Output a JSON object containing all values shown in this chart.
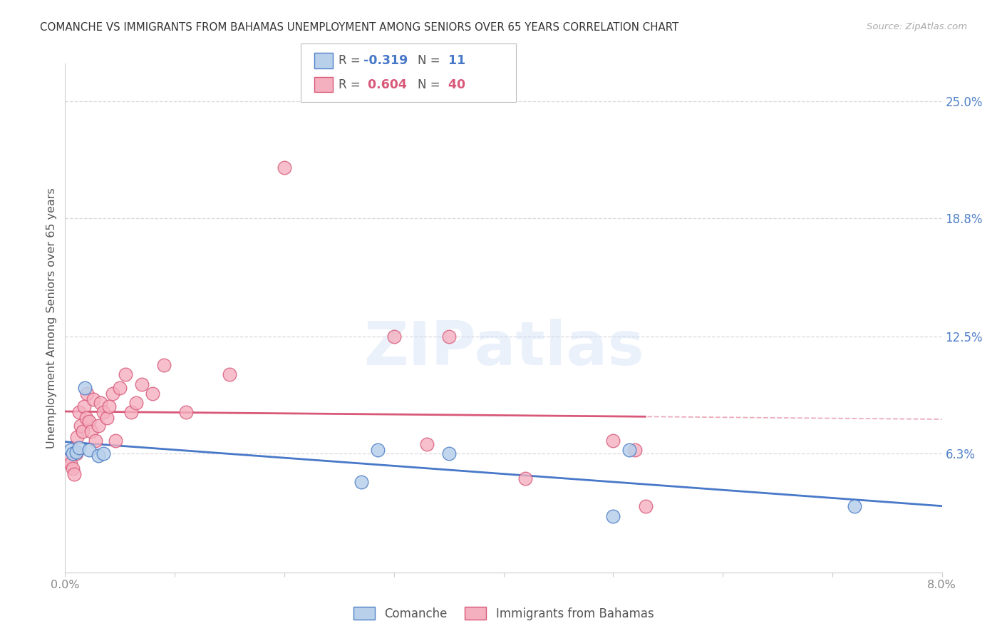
{
  "title": "COMANCHE VS IMMIGRANTS FROM BAHAMAS UNEMPLOYMENT AMONG SENIORS OVER 65 YEARS CORRELATION CHART",
  "source": "Source: ZipAtlas.com",
  "ylabel": "Unemployment Among Seniors over 65 years",
  "xlim": [
    0.0,
    8.0
  ],
  "ylim": [
    0.0,
    27.0
  ],
  "yticks_right": [
    6.3,
    12.5,
    18.8,
    25.0
  ],
  "ytick_labels_right": [
    "6.3%",
    "12.5%",
    "18.8%",
    "25.0%"
  ],
  "background_color": "#ffffff",
  "watermark": "ZIPatlas",
  "comanche_color": "#b8d0ea",
  "bahamas_color": "#f5b0c0",
  "comanche_edge_color": "#5080c8",
  "bahamas_edge_color": "#d85878",
  "comanche_line_color": "#4878c8",
  "bahamas_line_color": "#d85878",
  "grid_color": "#d8d8e0",
  "tick_color": "#888888",
  "right_label_color": "#5080c8",
  "comanche_x": [
    0.05,
    0.07,
    0.1,
    0.13,
    0.18,
    0.22,
    0.3,
    0.35,
    2.7,
    2.85,
    3.5,
    5.0,
    5.15,
    7.2
  ],
  "comanche_y": [
    6.5,
    6.3,
    6.4,
    6.6,
    9.8,
    6.5,
    6.2,
    6.3,
    4.8,
    6.5,
    6.3,
    3.0,
    6.5,
    3.5
  ],
  "bahamas_x": [
    0.03,
    0.05,
    0.07,
    0.08,
    0.1,
    0.11,
    0.13,
    0.14,
    0.16,
    0.17,
    0.19,
    0.2,
    0.22,
    0.24,
    0.26,
    0.28,
    0.3,
    0.32,
    0.35,
    0.38,
    0.4,
    0.43,
    0.46,
    0.5,
    0.55,
    0.6,
    0.65,
    0.7,
    0.8,
    0.9,
    1.1,
    1.5,
    2.0,
    3.0,
    3.3,
    3.5,
    4.2,
    5.0,
    5.2,
    5.3
  ],
  "bahamas_y": [
    6.0,
    5.8,
    5.5,
    5.2,
    6.3,
    7.2,
    8.5,
    7.8,
    7.5,
    8.8,
    8.2,
    9.5,
    8.0,
    7.5,
    9.2,
    7.0,
    7.8,
    9.0,
    8.5,
    8.2,
    8.8,
    9.5,
    7.0,
    9.8,
    10.5,
    8.5,
    9.0,
    10.0,
    9.5,
    11.0,
    8.5,
    10.5,
    21.5,
    12.5,
    6.8,
    12.5,
    5.0,
    7.0,
    6.5,
    3.5
  ]
}
